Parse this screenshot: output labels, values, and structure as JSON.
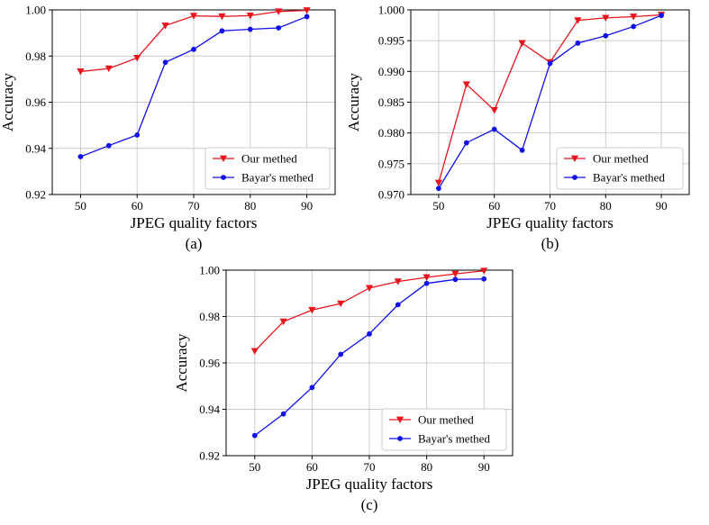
{
  "chart_data": [
    {
      "type": "line",
      "panel_label": "(a)",
      "xlabel": "JPEG quality factors",
      "ylabel": "Accuracy",
      "x": [
        50,
        55,
        60,
        65,
        70,
        75,
        80,
        85,
        90
      ],
      "xticks": [
        50,
        60,
        70,
        80,
        90
      ],
      "yticks": [
        0.92,
        0.94,
        0.96,
        0.98,
        1.0
      ],
      "ytick_labels": [
        "0.92",
        "0.94",
        "0.96",
        "0.98",
        "1.00"
      ],
      "xlim": [
        45,
        95
      ],
      "ylim": [
        0.92,
        1.0
      ],
      "grid": true,
      "legend_position": "bottom-right",
      "series": [
        {
          "name": "Our methed",
          "color": "#e8141c",
          "marker": "triangle-down",
          "values": [
            0.9733,
            0.9746,
            0.9792,
            0.9932,
            0.9974,
            0.9972,
            0.9975,
            0.9993,
            0.9998
          ]
        },
        {
          "name": "Bayar's methed",
          "color": "#1010e8",
          "marker": "circle",
          "values": [
            0.9364,
            0.9412,
            0.9458,
            0.9773,
            0.9829,
            0.9909,
            0.9916,
            0.9922,
            0.9971
          ]
        }
      ]
    },
    {
      "type": "line",
      "panel_label": "(b)",
      "xlabel": "JPEG quality factors",
      "ylabel": "Accuracy",
      "x": [
        50,
        55,
        60,
        65,
        70,
        75,
        80,
        85,
        90
      ],
      "xticks": [
        50,
        60,
        70,
        80,
        90
      ],
      "yticks": [
        0.97,
        0.975,
        0.98,
        0.985,
        0.99,
        0.995,
        1.0
      ],
      "ytick_labels": [
        "0.970",
        "0.975",
        "0.980",
        "0.985",
        "0.990",
        "0.995",
        "1.000"
      ],
      "xlim": [
        45,
        95
      ],
      "ylim": [
        0.97,
        1.0
      ],
      "grid": true,
      "legend_position": "bottom-right",
      "series": [
        {
          "name": "Our methed",
          "color": "#e8141c",
          "marker": "triangle-down",
          "values": [
            0.9719,
            0.9879,
            0.9837,
            0.9946,
            0.9915,
            0.9983,
            0.9987,
            0.9989,
            0.9992
          ]
        },
        {
          "name": "Bayar's methed",
          "color": "#1010e8",
          "marker": "circle",
          "values": [
            0.971,
            0.9784,
            0.9806,
            0.9772,
            0.9913,
            0.9946,
            0.9958,
            0.9973,
            0.9991
          ]
        }
      ]
    },
    {
      "type": "line",
      "panel_label": "(c)",
      "xlabel": "JPEG quality factors",
      "ylabel": "Accuracy",
      "x": [
        50,
        55,
        60,
        65,
        70,
        75,
        80,
        85,
        90
      ],
      "xticks": [
        50,
        60,
        70,
        80,
        90
      ],
      "yticks": [
        0.92,
        0.94,
        0.96,
        0.98,
        1.0
      ],
      "ytick_labels": [
        "0.92",
        "0.94",
        "0.96",
        "0.98",
        "1.00"
      ],
      "xlim": [
        45,
        95
      ],
      "ylim": [
        0.92,
        1.0
      ],
      "grid": true,
      "legend_position": "bottom-right",
      "series": [
        {
          "name": "Our methed",
          "color": "#e8141c",
          "marker": "triangle-down",
          "values": [
            0.9651,
            0.9778,
            0.9828,
            0.9856,
            0.9923,
            0.9951,
            0.9969,
            0.9984,
            0.9997
          ]
        },
        {
          "name": "Bayar's methed",
          "color": "#1010e8",
          "marker": "circle",
          "values": [
            0.9287,
            0.938,
            0.9494,
            0.9637,
            0.9725,
            0.9851,
            0.9943,
            0.996,
            0.9962
          ]
        }
      ]
    }
  ]
}
